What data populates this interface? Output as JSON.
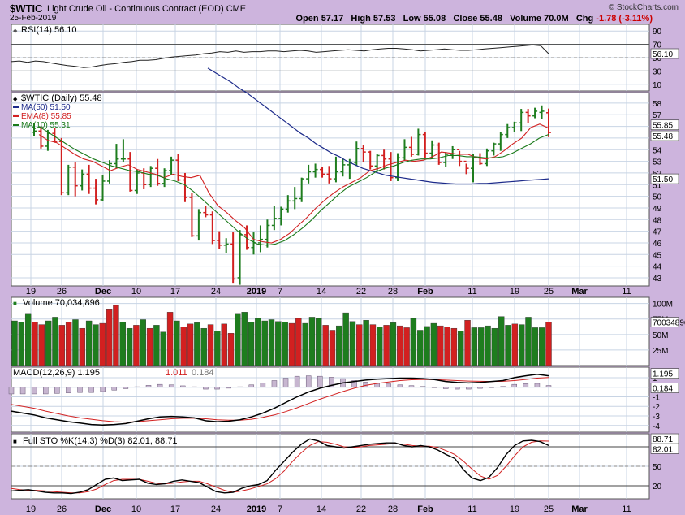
{
  "header": {
    "symbol": "$WTIC",
    "name": "Light Crude Oil - Continuous Contract (EOD) CME",
    "date": "25-Feb-2019",
    "open_label": "Open",
    "open": "57.17",
    "high_label": "High",
    "high": "57.53",
    "low_label": "Low",
    "low": "55.08",
    "close_label": "Close",
    "close": "55.48",
    "volume_label": "Volume",
    "volume": "70.0M",
    "chg_label": "Chg",
    "chg": "-1.78 (-3.11%)",
    "brand": "© StockCharts.com"
  },
  "colors": {
    "up": "#1e7d1e",
    "down": "#d22020",
    "ma50": "#1c2a8a",
    "ema8": "#d22020",
    "ma10": "#1a7a1a",
    "background": "#cdb4dd"
  },
  "chart_data": [
    {
      "type": "line",
      "title": "RSI(14) 56.10",
      "series": [
        {
          "name": "RSI(14)",
          "values": [
            44,
            45,
            43,
            45,
            44,
            42,
            40,
            38,
            37,
            35,
            36,
            38,
            40,
            41,
            43,
            44,
            46,
            46,
            47,
            49,
            51,
            52,
            53,
            54,
            56,
            57,
            59,
            58,
            60,
            58,
            59,
            59,
            60,
            60,
            59,
            60,
            61,
            60,
            58,
            59,
            60,
            61,
            62,
            61,
            60,
            62,
            63,
            64,
            64,
            63,
            62,
            60,
            61,
            62,
            63,
            62,
            61,
            61,
            62,
            63,
            64,
            65,
            66,
            67,
            68,
            69,
            68,
            56
          ]
        }
      ],
      "yticks": [
        10,
        30,
        50,
        70,
        90
      ],
      "ylim": [
        0,
        100
      ],
      "value_label": "56.10"
    },
    {
      "type": "bar",
      "title": "$WTIC (Daily) 55.48",
      "legend": [
        {
          "name": "MA(50) 51.50",
          "color": "#1c2a8a"
        },
        {
          "name": "EMA(8) 55.85",
          "color": "#d22020"
        },
        {
          "name": "MA(10) 55.31",
          "color": "#1a7a1a"
        }
      ],
      "yticks": [
        43,
        44,
        45,
        46,
        47,
        48,
        49,
        50,
        51,
        52,
        53,
        54,
        55,
        56,
        57,
        58
      ],
      "ylim": [
        42.3,
        58.9
      ],
      "price_labels": {
        "close": "55.48",
        "ma50": "51.50",
        "ema8": "55.85"
      },
      "bars": [
        [
          55.5,
          56.3,
          55.2,
          55.6
        ],
        [
          55.6,
          56.0,
          54.1,
          54.3
        ],
        [
          54.3,
          55.7,
          53.9,
          55.4
        ],
        [
          55.4,
          55.9,
          54.6,
          54.7
        ],
        [
          54.7,
          55.0,
          50.1,
          50.3
        ],
        [
          50.3,
          52.7,
          50.1,
          52.5
        ],
        [
          52.5,
          52.9,
          50.0,
          50.9
        ],
        [
          50.9,
          52.3,
          50.5,
          51.9
        ],
        [
          51.9,
          52.7,
          50.2,
          50.7
        ],
        [
          50.7,
          51.5,
          49.3,
          49.7
        ],
        [
          49.7,
          51.8,
          49.6,
          51.3
        ],
        [
          51.3,
          53.1,
          51.1,
          52.8
        ],
        [
          52.8,
          54.5,
          52.4,
          53.2
        ],
        [
          53.2,
          54.9,
          52.9,
          53.2
        ],
        [
          53.2,
          53.8,
          50.4,
          50.5
        ],
        [
          50.5,
          52.3,
          50.2,
          52.0
        ],
        [
          52.0,
          52.4,
          50.6,
          51.0
        ],
        [
          51.0,
          52.6,
          50.8,
          52.4
        ],
        [
          52.4,
          53.2,
          50.9,
          51.1
        ],
        [
          51.1,
          52.4,
          50.8,
          52.2
        ],
        [
          52.2,
          53.4,
          51.8,
          53.1
        ],
        [
          53.1,
          53.6,
          51.3,
          51.4
        ],
        [
          51.4,
          52.0,
          49.5,
          49.9
        ],
        [
          49.9,
          50.3,
          46.5,
          46.6
        ],
        [
          46.6,
          48.9,
          46.2,
          48.6
        ],
        [
          48.6,
          49.2,
          48.2,
          48.4
        ],
        [
          48.4,
          48.7,
          45.9,
          46.2
        ],
        [
          46.2,
          47.0,
          45.5,
          45.8
        ],
        [
          45.8,
          46.4,
          45.1,
          45.9
        ],
        [
          45.9,
          46.9,
          42.5,
          42.9
        ],
        [
          43.0,
          47.1,
          42.4,
          46.7
        ],
        [
          46.7,
          47.5,
          45.4,
          45.6
        ],
        [
          45.6,
          46.9,
          45.0,
          46.0
        ],
        [
          46.0,
          47.5,
          45.2,
          46.3
        ],
        [
          46.3,
          48.0,
          45.6,
          47.5
        ],
        [
          47.5,
          49.2,
          47.1,
          48.1
        ],
        [
          48.1,
          49.1,
          47.5,
          48.9
        ],
        [
          48.9,
          50.1,
          48.6,
          49.6
        ],
        [
          49.6,
          50.8,
          48.9,
          49.8
        ],
        [
          49.8,
          51.6,
          49.5,
          51.5
        ],
        [
          51.5,
          52.7,
          51.1,
          52.1
        ],
        [
          52.1,
          52.8,
          51.6,
          52.3
        ],
        [
          52.3,
          52.5,
          51.6,
          51.9
        ],
        [
          51.9,
          52.6,
          51.1,
          51.5
        ],
        [
          51.5,
          53.4,
          51.2,
          52.1
        ],
        [
          52.1,
          53.3,
          51.7,
          52.7
        ],
        [
          52.7,
          53.2,
          51.5,
          52.9
        ],
        [
          52.9,
          54.7,
          52.6,
          54.1
        ],
        [
          54.1,
          54.4,
          52.9,
          53.8
        ],
        [
          53.8,
          53.9,
          52.3,
          52.6
        ],
        [
          52.6,
          53.6,
          52.1,
          53.5
        ],
        [
          53.5,
          54.0,
          52.3,
          53.2
        ],
        [
          53.2,
          53.8,
          51.3,
          51.6
        ],
        [
          51.6,
          53.7,
          51.3,
          53.3
        ],
        [
          53.3,
          54.9,
          53.1,
          54.2
        ],
        [
          54.2,
          55.1,
          53.4,
          53.6
        ],
        [
          53.6,
          55.8,
          53.5,
          55.3
        ],
        [
          55.3,
          55.5,
          53.3,
          53.7
        ],
        [
          53.7,
          54.8,
          53.3,
          54.4
        ],
        [
          54.4,
          54.6,
          52.7,
          52.9
        ],
        [
          52.9,
          53.8,
          52.5,
          53.6
        ],
        [
          53.6,
          54.3,
          53.2,
          54.0
        ],
        [
          54.0,
          53.9,
          52.6,
          53.0
        ],
        [
          53.0,
          52.8,
          51.9,
          52.4
        ],
        [
          52.4,
          53.6,
          51.2,
          53.3
        ],
        [
          53.3,
          53.7,
          52.7,
          52.8
        ],
        [
          52.8,
          54.1,
          52.6,
          53.9
        ],
        [
          53.9,
          54.6,
          53.5,
          54.5
        ],
        [
          54.5,
          55.5,
          53.9,
          55.3
        ],
        [
          55.3,
          56.2,
          55.0,
          55.9
        ],
        [
          55.9,
          56.4,
          55.5,
          56.3
        ],
        [
          56.3,
          57.5,
          55.6,
          57.2
        ],
        [
          57.2,
          57.5,
          56.3,
          56.9
        ],
        [
          56.9,
          57.6,
          56.7,
          57.3
        ],
        [
          57.2,
          57.8,
          56.6,
          57.3
        ],
        [
          57.17,
          57.53,
          55.08,
          55.48
        ]
      ],
      "ma50": [
        61.0,
        60.6,
        60.2,
        59.8,
        59.3,
        58.9,
        58.4,
        57.9,
        57.4,
        56.9,
        56.4,
        55.9,
        55.4,
        55.0,
        54.5,
        54.1,
        53.7,
        53.4,
        53.0,
        52.7,
        52.4,
        52.2,
        52.0,
        51.8,
        51.7,
        51.6,
        51.5,
        51.4,
        51.3,
        51.2,
        51.15,
        51.1,
        51.05,
        51.05,
        51.05,
        51.1,
        51.1,
        51.15,
        51.2,
        51.25,
        51.3,
        51.35,
        51.4,
        51.45,
        51.5
      ],
      "ema8": [
        55.3,
        54.8,
        54.6,
        54.1,
        53.6,
        53.2,
        53.0,
        52.6,
        52.2,
        52.5,
        52.7,
        52.3,
        52.1,
        51.9,
        51.6,
        51.9,
        51.7,
        51.6,
        51.8,
        50.3,
        49.2,
        48.6,
        47.9,
        47.3,
        46.3,
        46.1,
        46.0,
        46.3,
        46.8,
        47.5,
        48.2,
        49.0,
        49.7,
        50.3,
        50.8,
        51.2,
        51.6,
        52.2,
        52.4,
        52.7,
        52.9,
        53.1,
        53.0,
        53.1,
        53.4,
        53.8,
        53.7,
        53.6,
        53.6,
        53.3,
        53.2,
        53.4,
        53.9,
        54.5,
        55.0,
        55.9,
        56.2,
        55.85
      ],
      "ma10": [
        56.0,
        55.5,
        55.0,
        54.5,
        54.0,
        53.6,
        53.2,
        52.9,
        52.6,
        52.4,
        52.2,
        52.1,
        51.9,
        51.8,
        51.5,
        51.3,
        51.0,
        50.4,
        49.7,
        49.0,
        48.3,
        47.6,
        46.9,
        46.3,
        45.9,
        45.8,
        45.9,
        46.2,
        46.7,
        47.3,
        48.0,
        48.8,
        49.5,
        50.2,
        50.8,
        51.2,
        51.6,
        52.1,
        52.4,
        52.6,
        52.9,
        53.1,
        53.2,
        53.2,
        53.3,
        53.5,
        53.5,
        53.4,
        53.4,
        53.3,
        53.3,
        53.4,
        53.7,
        54.1,
        54.5,
        55.0,
        55.31
      ]
    },
    {
      "type": "bar",
      "title": "Volume 70,034,896",
      "yticks": [
        "25M",
        "50M",
        "75M",
        "100M"
      ],
      "ylim": [
        0,
        110
      ],
      "value_label": "70034896",
      "values": [
        72,
        70,
        84,
        70,
        66,
        72,
        78,
        65,
        70,
        74,
        60,
        72,
        66,
        68,
        90,
        97,
        70,
        60,
        65,
        74,
        60,
        65,
        54,
        86,
        72,
        62,
        67,
        69,
        60,
        66,
        56,
        67,
        52,
        84,
        86,
        70,
        76,
        72,
        74,
        71,
        70,
        68,
        76,
        68,
        78,
        76,
        65,
        57,
        64,
        85,
        71,
        66,
        73,
        66,
        62,
        65,
        69,
        64,
        61,
        76,
        57,
        63,
        68,
        64,
        62,
        60,
        56,
        73,
        61,
        61,
        64,
        60,
        79,
        65,
        67,
        66,
        78,
        61,
        61,
        70
      ],
      "up_flags": [
        1,
        1,
        1,
        0,
        0,
        1,
        1,
        0,
        0,
        1,
        0,
        1,
        1,
        0,
        0,
        0,
        1,
        1,
        0,
        1,
        0,
        1,
        1,
        0,
        1,
        0,
        0,
        1,
        1,
        0,
        1,
        0,
        0,
        1,
        1,
        1,
        1,
        1,
        1,
        1,
        1,
        0,
        0,
        1,
        1,
        1,
        0,
        0,
        1,
        1,
        1,
        0,
        1,
        0,
        1,
        0,
        1,
        0,
        0,
        1,
        1,
        1,
        1,
        0,
        0,
        0,
        1,
        0,
        1,
        1,
        1,
        1,
        1,
        1,
        0,
        1,
        1,
        1,
        1,
        0
      ]
    },
    {
      "type": "line",
      "title": "MACD(12,26,9) 1.195, 1.011, 0.184",
      "legend": [
        {
          "name": "MACD(12,26,9) 1.195"
        },
        {
          "name": "1.011"
        },
        {
          "name": "0.184"
        }
      ],
      "yticks": [
        -4,
        -3,
        -2,
        -1,
        0,
        1
      ],
      "ylim": [
        -4.7,
        2.1
      ],
      "value_labels": [
        "1.195",
        "0.184"
      ],
      "macd": [
        -2.5,
        -2.7,
        -2.9,
        -3.2,
        -3.4,
        -3.6,
        -3.75,
        -3.9,
        -3.95,
        -3.9,
        -3.8,
        -3.55,
        -3.3,
        -3.1,
        -3.05,
        -3.1,
        -3.2,
        -3.5,
        -3.6,
        -3.55,
        -3.4,
        -3.1,
        -2.7,
        -2.2,
        -1.6,
        -1.0,
        -0.5,
        -0.1,
        0.2,
        0.45,
        0.6,
        0.75,
        0.85,
        0.9,
        0.95,
        0.95,
        0.9,
        0.8,
        0.6,
        0.5,
        0.45,
        0.5,
        0.6,
        0.7,
        1.0,
        1.2,
        1.35,
        1.195
      ],
      "signal": [
        -1.8,
        -2.0,
        -2.2,
        -2.5,
        -2.75,
        -3.0,
        -3.2,
        -3.35,
        -3.5,
        -3.6,
        -3.65,
        -3.6,
        -3.5,
        -3.4,
        -3.3,
        -3.25,
        -3.25,
        -3.3,
        -3.4,
        -3.45,
        -3.45,
        -3.35,
        -3.15,
        -2.9,
        -2.55,
        -2.15,
        -1.7,
        -1.25,
        -0.85,
        -0.45,
        -0.1,
        0.2,
        0.4,
        0.55,
        0.7,
        0.78,
        0.82,
        0.8,
        0.75,
        0.7,
        0.65,
        0.62,
        0.6,
        0.62,
        0.7,
        0.82,
        0.95,
        1.011
      ],
      "histogram": [
        -0.7,
        -0.7,
        -0.7,
        -0.7,
        -0.65,
        -0.6,
        -0.55,
        -0.55,
        -0.45,
        -0.3,
        -0.15,
        0.05,
        0.2,
        0.3,
        0.25,
        0.15,
        0.05,
        -0.2,
        -0.2,
        -0.1,
        0.05,
        0.25,
        0.45,
        0.7,
        0.95,
        1.15,
        1.2,
        1.15,
        1.05,
        0.9,
        0.7,
        0.55,
        0.45,
        0.35,
        0.25,
        0.17,
        0.08,
        0.0,
        -0.15,
        -0.2,
        -0.2,
        -0.12,
        0.0,
        0.08,
        0.3,
        0.38,
        0.4,
        0.184
      ]
    },
    {
      "type": "line",
      "title": "Full STO %K(14,3) %D(3) 82.01, 88.71",
      "yticks": [
        20,
        50,
        80
      ],
      "ylim": [
        0,
        100
      ],
      "value_labels": [
        "88.71",
        "82.01"
      ],
      "k": [
        12,
        13,
        14,
        12,
        10,
        9,
        9,
        8,
        10,
        14,
        22,
        30,
        32,
        28,
        29,
        30,
        24,
        22,
        23,
        27,
        29,
        27,
        25,
        18,
        11,
        9,
        10,
        16,
        20,
        22,
        28,
        44,
        58,
        72,
        84,
        92,
        89,
        82,
        80,
        78,
        80,
        82,
        84,
        85,
        86,
        86,
        82,
        80,
        82,
        80,
        75,
        68,
        62,
        45,
        32,
        28,
        33,
        48,
        68,
        82,
        89,
        90,
        88,
        82
      ],
      "d": [
        16,
        14,
        13,
        13,
        12,
        11,
        10,
        9,
        9,
        11,
        15,
        22,
        28,
        30,
        30,
        30,
        27,
        24,
        23,
        24,
        26,
        27,
        27,
        23,
        18,
        13,
        10,
        12,
        15,
        19,
        23,
        31,
        43,
        58,
        71,
        82,
        88,
        87,
        84,
        80,
        79,
        80,
        82,
        83,
        84,
        85,
        84,
        82,
        81,
        81,
        79,
        74,
        68,
        58,
        46,
        35,
        30,
        36,
        50,
        66,
        80,
        87,
        89,
        88.71
      ],
      "x_labels": [
        "19",
        "26",
        "Dec",
        "10",
        "17",
        "24",
        "2019",
        "7",
        "14",
        "22",
        "28",
        "Feb",
        "11",
        "19",
        "25",
        "Mar",
        "11"
      ]
    }
  ]
}
